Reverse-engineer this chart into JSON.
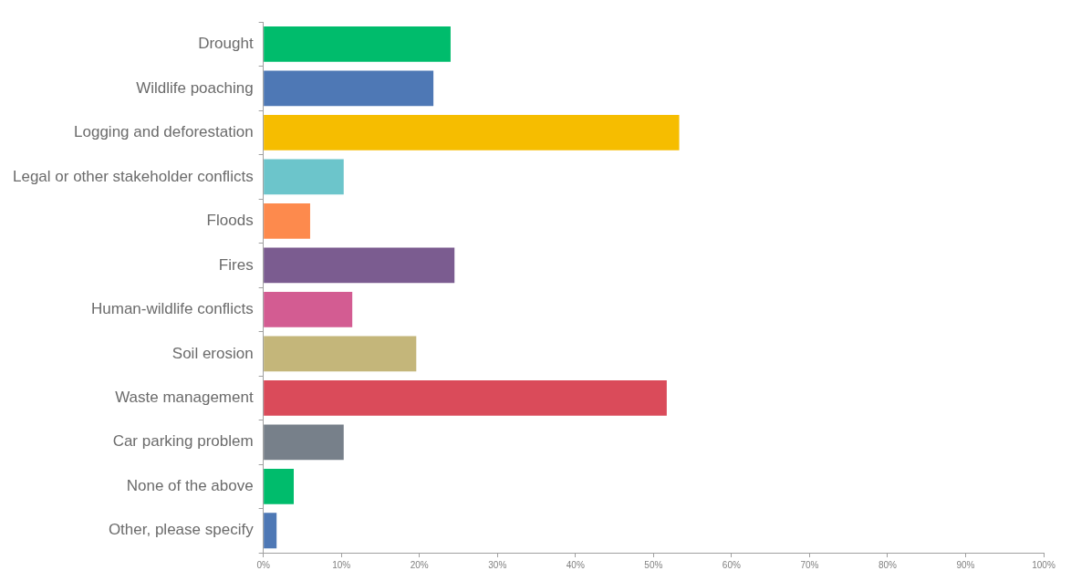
{
  "chart_data": {
    "type": "bar",
    "orientation": "horizontal",
    "categories": [
      "Drought",
      "Wildlife poaching",
      "Logging and deforestation",
      "Legal or other stakeholder conflicts",
      "Floods",
      "Fires",
      "Human-wildlife conflicts",
      "Soil erosion",
      "Waste management",
      "Car parking problem",
      "None of the above",
      "Other, please specify"
    ],
    "values": [
      24.0,
      21.8,
      53.3,
      10.3,
      6.0,
      24.5,
      11.4,
      19.6,
      51.7,
      10.3,
      3.9,
      1.7
    ],
    "colors": [
      "#00bc6c",
      "#4e78b5",
      "#f6bd00",
      "#6cc5cb",
      "#fd8a4d",
      "#7b5c90",
      "#d35c92",
      "#c4b67a",
      "#da4b5a",
      "#77808a",
      "#00bc6c",
      "#4e78b5"
    ],
    "xlim": [
      0,
      100
    ],
    "xticks": [
      {
        "value": 0,
        "label": "0%"
      },
      {
        "value": 10,
        "label": "10%"
      },
      {
        "value": 20,
        "label": "20%"
      },
      {
        "value": 30,
        "label": "30%"
      },
      {
        "value": 40,
        "label": "40%"
      },
      {
        "value": 50,
        "label": "50%"
      },
      {
        "value": 60,
        "label": "60%"
      },
      {
        "value": 70,
        "label": "70%"
      },
      {
        "value": 80,
        "label": "80%"
      },
      {
        "value": 90,
        "label": "90%"
      },
      {
        "value": 100,
        "label": "100%"
      }
    ],
    "grid": false,
    "legend": false
  }
}
